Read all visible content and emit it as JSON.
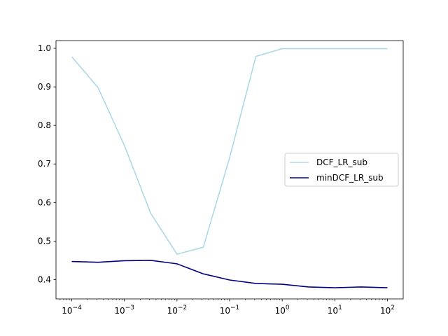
{
  "chart_data": {
    "type": "line",
    "title": "",
    "xlabel": "",
    "ylabel": "",
    "xscale": "log",
    "xlim": [
      6e-05,
      0.00017
    ],
    "ylim": [
      0.35,
      1.02
    ],
    "x": [
      0.0001,
      0.000316,
      0.001,
      0.00316,
      0.01,
      0.0316,
      0.1,
      0.316,
      1,
      3.16,
      10,
      31.6,
      100
    ],
    "series": [
      {
        "name": "DCF_LR_sub",
        "color": "#add8e6",
        "values": [
          0.978,
          0.898,
          0.748,
          0.572,
          0.466,
          0.484,
          0.716,
          0.979,
          0.999,
          0.999,
          0.999,
          0.999,
          0.999
        ]
      },
      {
        "name": "minDCF_LR_sub",
        "color": "#000080",
        "values": [
          0.447,
          0.445,
          0.449,
          0.45,
          0.441,
          0.415,
          0.399,
          0.39,
          0.388,
          0.381,
          0.379,
          0.381,
          0.379
        ]
      }
    ],
    "x_ticks": [
      {
        "value": 0.0001,
        "base": "10",
        "exp": "−4"
      },
      {
        "value": 0.001,
        "base": "10",
        "exp": "−3"
      },
      {
        "value": 0.01,
        "base": "10",
        "exp": "−2"
      },
      {
        "value": 0.1,
        "base": "10",
        "exp": "−1"
      },
      {
        "value": 1,
        "base": "10",
        "exp": "0"
      },
      {
        "value": 10,
        "base": "10",
        "exp": "1"
      },
      {
        "value": 100,
        "base": "10",
        "exp": "2"
      }
    ],
    "y_ticks": [
      {
        "value": 0.4,
        "label": "0.4"
      },
      {
        "value": 0.5,
        "label": "0.5"
      },
      {
        "value": 0.6,
        "label": "0.6"
      },
      {
        "value": 0.7,
        "label": "0.7"
      },
      {
        "value": 0.8,
        "label": "0.8"
      },
      {
        "value": 0.9,
        "label": "0.9"
      },
      {
        "value": 1.0,
        "label": "1.0"
      }
    ],
    "legend_position": "center-right",
    "grid": false
  }
}
